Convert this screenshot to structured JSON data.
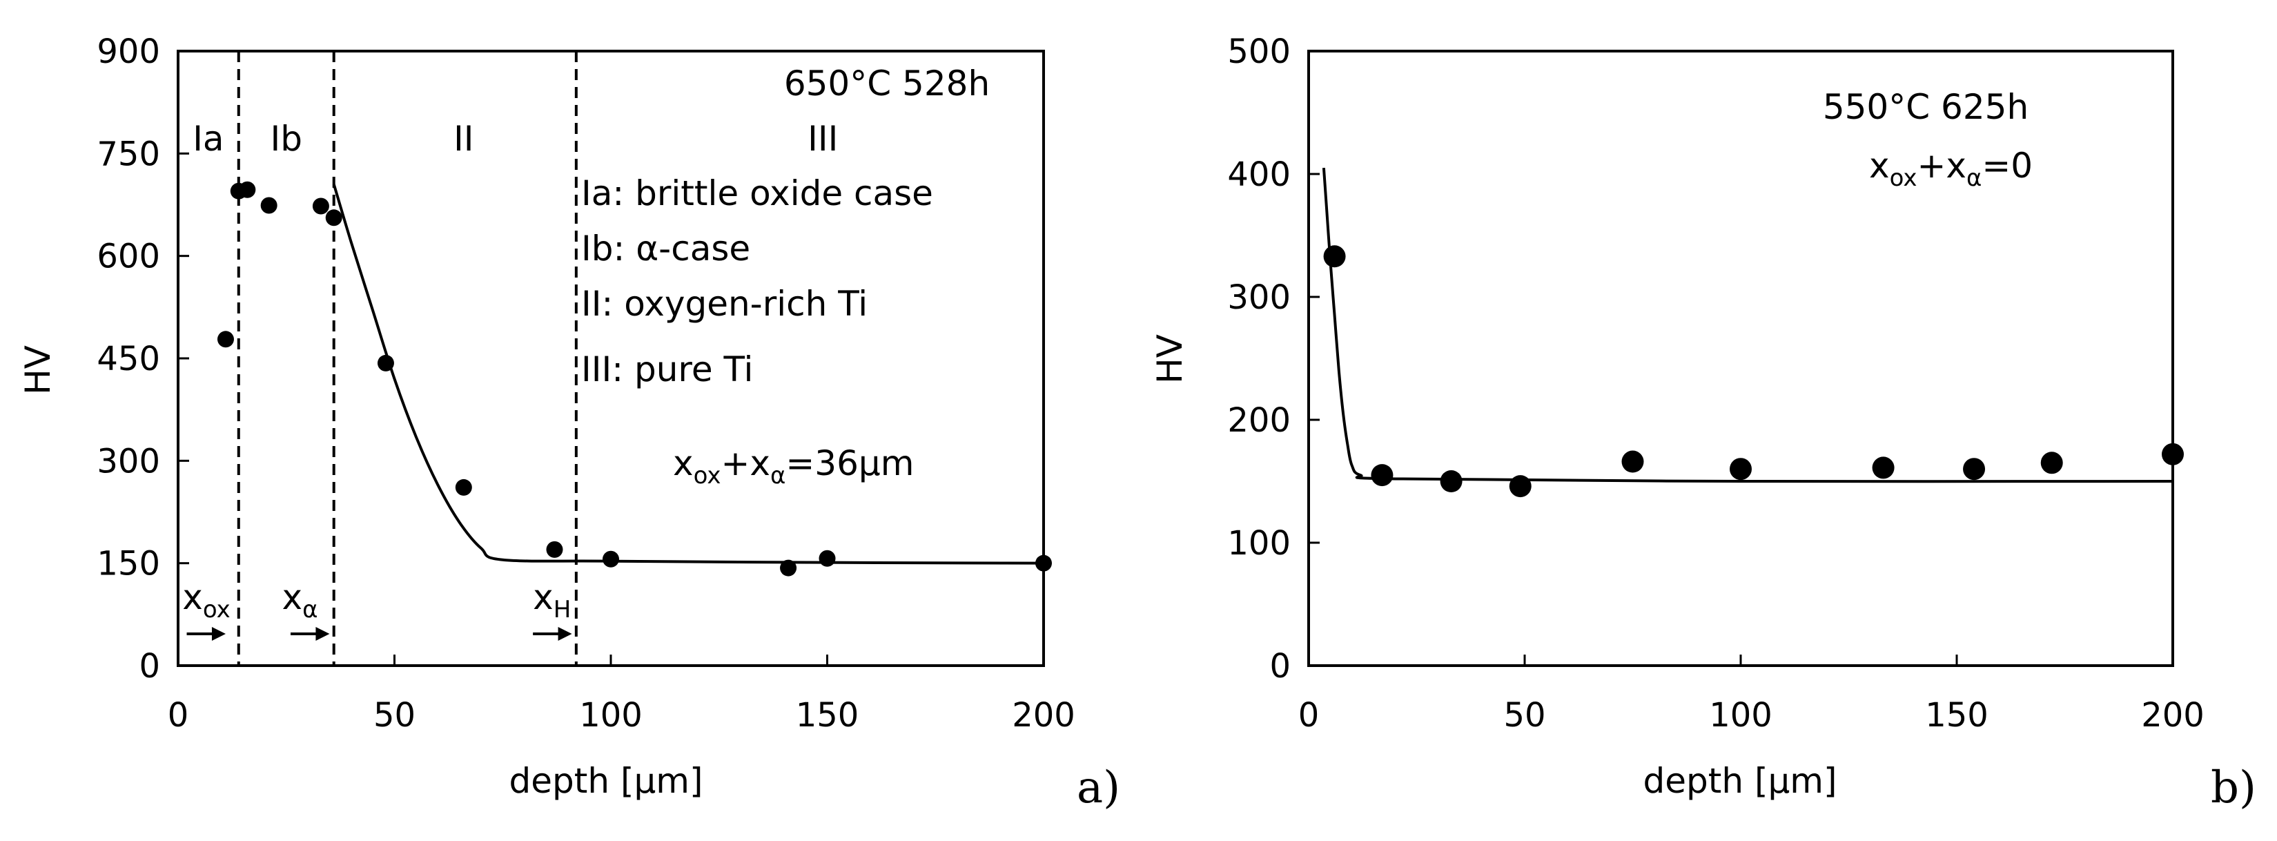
{
  "chart_data": [
    {
      "type": "scatter",
      "panel_label": "a)",
      "xlabel": "depth [µm]",
      "ylabel": "HV",
      "xlim": [
        0,
        200
      ],
      "ylim": [
        0,
        900
      ],
      "xticks": [
        0,
        50,
        100,
        150,
        200
      ],
      "yticks": [
        0,
        150,
        300,
        450,
        600,
        750,
        900
      ],
      "grid": false,
      "condition": "650°C 528h",
      "points": [
        {
          "x": 11,
          "y": 478
        },
        {
          "x": 14,
          "y": 695
        },
        {
          "x": 16,
          "y": 697
        },
        {
          "x": 21,
          "y": 674
        },
        {
          "x": 33,
          "y": 673
        },
        {
          "x": 36,
          "y": 656
        },
        {
          "x": 48,
          "y": 443
        },
        {
          "x": 66,
          "y": 261
        },
        {
          "x": 87,
          "y": 170
        },
        {
          "x": 100,
          "y": 156
        },
        {
          "x": 141,
          "y": 143
        },
        {
          "x": 150,
          "y": 157
        },
        {
          "x": 200,
          "y": 150
        }
      ],
      "fit_curve": [
        {
          "x": 36,
          "y": 705
        },
        {
          "x": 40,
          "y": 620
        },
        {
          "x": 45,
          "y": 520
        },
        {
          "x": 50,
          "y": 420
        },
        {
          "x": 55,
          "y": 335
        },
        {
          "x": 60,
          "y": 265
        },
        {
          "x": 65,
          "y": 210
        },
        {
          "x": 70,
          "y": 172
        },
        {
          "x": 75,
          "y": 155
        },
        {
          "x": 100,
          "y": 153
        },
        {
          "x": 150,
          "y": 151
        },
        {
          "x": 200,
          "y": 150
        }
      ],
      "boundaries": [
        14,
        36,
        92
      ],
      "zones": [
        {
          "label": "Ia",
          "x": 7
        },
        {
          "label": "Ib",
          "x": 25
        },
        {
          "label": "II",
          "x": 66
        },
        {
          "label": "III",
          "x": 149
        }
      ],
      "legend_lines": [
        "Ia: brittle oxide case",
        "Ib: α-case",
        "II: oxygen-rich Ti",
        "III: pure Ti"
      ],
      "thickness_text": {
        "x": "x",
        "sub1": "ox",
        "plus": "+x",
        "sub2": "α",
        "rest": "=36µm"
      },
      "markers": [
        {
          "main": "x",
          "sub": "ox",
          "x_label": 1,
          "arrow_from": 2,
          "arrow_to": 11
        },
        {
          "main": "x",
          "sub": "α",
          "x_label": 24,
          "arrow_from": 26,
          "arrow_to": 35
        },
        {
          "main": "x",
          "sub": "H",
          "x_label": 82,
          "arrow_from": 82,
          "arrow_to": 91
        }
      ]
    },
    {
      "type": "scatter",
      "panel_label": "b)",
      "xlabel": "depth [µm]",
      "ylabel": "HV",
      "xlim": [
        0,
        200
      ],
      "ylim": [
        0,
        500
      ],
      "xticks": [
        0,
        50,
        100,
        150,
        200
      ],
      "yticks": [
        0,
        100,
        200,
        300,
        400,
        500
      ],
      "grid": false,
      "condition": "550°C 625h",
      "thickness_text": {
        "x": "x",
        "sub1": "ox",
        "plus": "+x",
        "sub2": "α",
        "rest": "=0"
      },
      "points": [
        {
          "x": 6,
          "y": 333
        },
        {
          "x": 17,
          "y": 155
        },
        {
          "x": 33,
          "y": 150
        },
        {
          "x": 49,
          "y": 146
        },
        {
          "x": 75,
          "y": 166
        },
        {
          "x": 100,
          "y": 160
        },
        {
          "x": 133,
          "y": 161
        },
        {
          "x": 154,
          "y": 160
        },
        {
          "x": 172,
          "y": 165
        },
        {
          "x": 200,
          "y": 172
        }
      ],
      "fit_curve": [
        {
          "x": 3.5,
          "y": 405
        },
        {
          "x": 4,
          "y": 380
        },
        {
          "x": 5,
          "y": 330
        },
        {
          "x": 6,
          "y": 285
        },
        {
          "x": 7,
          "y": 240
        },
        {
          "x": 8,
          "y": 205
        },
        {
          "x": 9,
          "y": 180
        },
        {
          "x": 10,
          "y": 163
        },
        {
          "x": 12,
          "y": 155
        },
        {
          "x": 20,
          "y": 152
        },
        {
          "x": 100,
          "y": 150
        },
        {
          "x": 200,
          "y": 150
        }
      ]
    }
  ]
}
